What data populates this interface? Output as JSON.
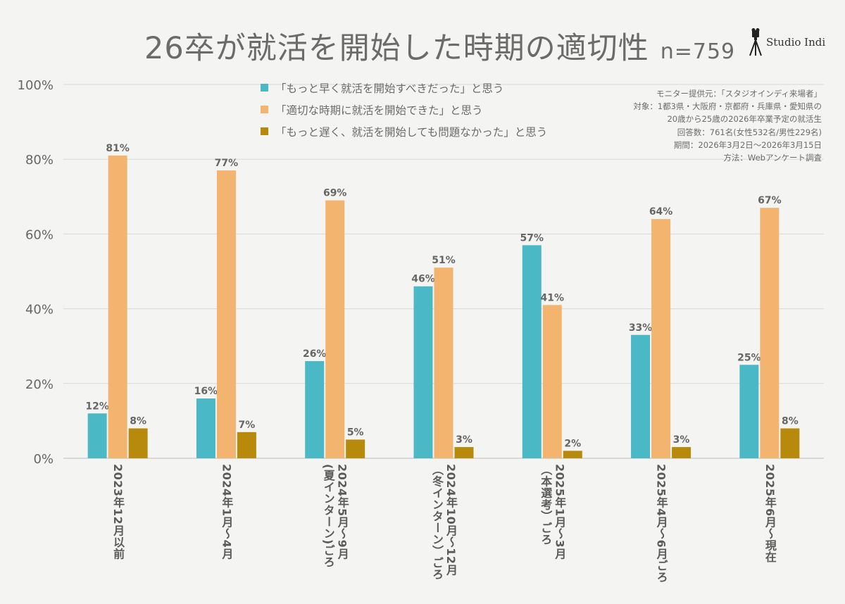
{
  "title": "26卒が就活を開始した時期の適切性",
  "n_label": "n=759",
  "brand": "Studio Indi",
  "notes": [
    "モニター提供元：「スタジオインディ来場者」",
    "対象：1都3県・大阪府・京都府・兵庫県・愛知県の",
    "20歳から25歳の2026年卒業予定の就活生",
    "回答数：761名(女性532名/男性229名)",
    "期間：2026年3月2日～2026年3月15日",
    "方法：Webアンケート調査"
  ],
  "chart_data": {
    "type": "bar",
    "categories": [
      [
        "2023年12月以前"
      ],
      [
        "2024年1月～4月"
      ],
      [
        "2024年5月～9月",
        "(夏インターン)ごろ"
      ],
      [
        "2024年10月～12月",
        "（冬インターン）ごろ"
      ],
      [
        "2025年1月～3月",
        "（本選考）ごろ"
      ],
      [
        "2025年4月～6月ごろ"
      ],
      [
        "2025年6月～現在"
      ]
    ],
    "series": [
      {
        "name": "「もっと早く就活を開始すべきだった」と思う",
        "color": "#4bb8c6",
        "values": [
          12,
          16,
          26,
          46,
          57,
          33,
          25
        ]
      },
      {
        "name": "「適切な時期に就活を開始できた」と思う",
        "color": "#f2b46e",
        "values": [
          81,
          77,
          69,
          51,
          41,
          64,
          67
        ]
      },
      {
        "name": "「もっと遅く、就活を開始しても問題なかった」と思う",
        "color": "#b88a0b",
        "values": [
          8,
          7,
          5,
          3,
          2,
          3,
          8
        ]
      }
    ],
    "value_suffix": "%",
    "ylim": [
      0,
      100
    ],
    "yticks": [
      0,
      20,
      40,
      60,
      80,
      100
    ],
    "ytick_labels": [
      "0%",
      "20%",
      "40%",
      "60%",
      "80%",
      "100%"
    ],
    "grid": true,
    "legend_position": "top-center"
  }
}
